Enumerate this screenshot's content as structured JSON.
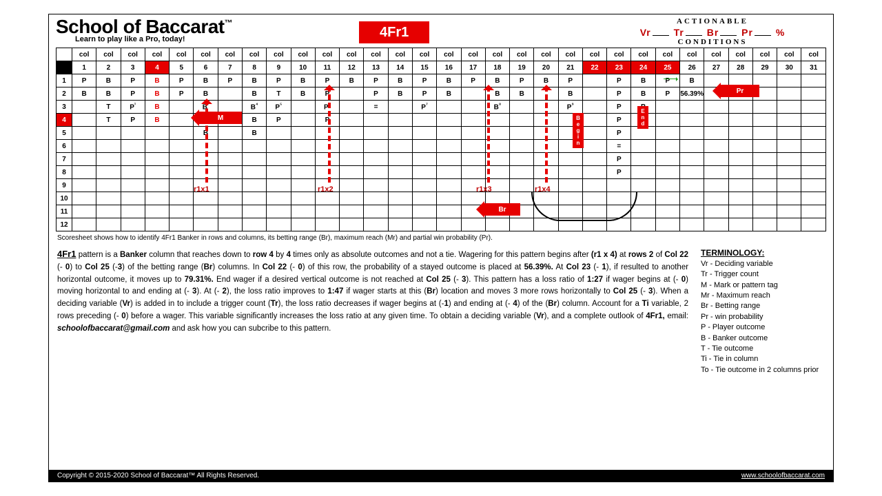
{
  "colors": {
    "red": "#e60000",
    "darkred": "#c00000",
    "black": "#000000"
  },
  "header": {
    "title": "School of Baccarat",
    "tm": "™",
    "tagline": "Learn to play like a Pro, today!",
    "badge": "4Fr1",
    "actionable_top": "ACTIONABLE",
    "actionable_bottom": "CONDITIONS",
    "formula_parts": [
      "Vr",
      "Tr",
      "Br",
      "Pr",
      "%"
    ]
  },
  "grid": {
    "col_label": "col",
    "num_cols": 31,
    "red_header_cols": [
      4,
      22,
      23,
      24,
      25
    ],
    "red_row_headers": [
      4
    ],
    "rows": [
      {
        "n": 1,
        "cells": [
          "P",
          "B",
          "P",
          "B",
          "P",
          "B",
          "P",
          "B",
          "P",
          "B",
          "P",
          "B",
          "P",
          "B",
          "P",
          "B",
          "P",
          "B",
          "P",
          "B",
          "P",
          "",
          "P",
          "B",
          "P",
          "B",
          "",
          "",
          "",
          "",
          ""
        ],
        "redcols": [
          4
        ]
      },
      {
        "n": 2,
        "cells": [
          "B",
          "B",
          "P",
          "B",
          "P",
          "B",
          "",
          "B",
          "T",
          "B",
          "P",
          "",
          "P",
          "B",
          "P",
          "B",
          "",
          "B",
          "B",
          "",
          "B",
          "",
          "P",
          "B",
          "P",
          "56.39%",
          "",
          "",
          "",
          "",
          ""
        ],
        "redcols": [
          4
        ]
      },
      {
        "n": 3,
        "cells": [
          "",
          "T",
          "P¹",
          "B",
          "",
          "B³",
          "",
          "B⁴",
          "P⁵",
          "",
          "P⁶",
          "",
          "=",
          "",
          "P⁷",
          "",
          "",
          "B⁸",
          "",
          "",
          "P⁹",
          "",
          "P",
          "B",
          "",
          "",
          "",
          "",
          "",
          "",
          ""
        ],
        "redcols": [
          4
        ]
      },
      {
        "n": 4,
        "cells": [
          "",
          "T",
          "P",
          "B",
          "",
          "",
          "",
          "B",
          "P",
          "",
          "P",
          "",
          "",
          "",
          "",
          "",
          "",
          "",
          "",
          "",
          "",
          "",
          "P",
          "",
          "",
          "",
          "",
          "",
          "",
          "",
          ""
        ],
        "redcols": [
          4
        ]
      },
      {
        "n": 5,
        "cells": [
          "",
          "",
          "",
          "",
          "",
          "B",
          "",
          "B",
          "",
          "",
          "",
          "",
          "",
          "",
          "",
          "",
          "",
          "",
          "",
          "",
          "",
          "",
          "P",
          "",
          "",
          "",
          "",
          "",
          "",
          "",
          ""
        ]
      },
      {
        "n": 6,
        "cells": [
          "",
          "",
          "",
          "",
          "",
          "",
          "",
          "",
          "",
          "",
          "",
          "",
          "",
          "",
          "",
          "",
          "",
          "",
          "",
          "",
          "",
          "",
          "=",
          "",
          "",
          "",
          "",
          "",
          "",
          "",
          ""
        ]
      },
      {
        "n": 7,
        "cells": [
          "",
          "",
          "",
          "",
          "",
          "",
          "",
          "",
          "",
          "",
          "",
          "",
          "",
          "",
          "",
          "",
          "",
          "",
          "",
          "",
          "",
          "",
          "P",
          "",
          "",
          "",
          "",
          "",
          "",
          "",
          ""
        ]
      },
      {
        "n": 8,
        "cells": [
          "",
          "",
          "",
          "",
          "",
          "",
          "",
          "",
          "",
          "",
          "",
          "",
          "",
          "",
          "",
          "",
          "",
          "",
          "",
          "",
          "",
          "",
          "P",
          "",
          "",
          "",
          "",
          "",
          "",
          "",
          ""
        ]
      },
      {
        "n": 9,
        "cells": [
          "",
          "",
          "",
          "",
          "",
          "",
          "",
          "",
          "",
          "",
          "",
          "",
          "",
          "",
          "",
          "",
          "",
          "",
          "",
          "",
          "",
          "",
          "",
          "",
          "",
          "",
          "",
          "",
          "",
          "",
          ""
        ]
      },
      {
        "n": 10,
        "cells": [
          "",
          "",
          "",
          "",
          "",
          "",
          "",
          "",
          "",
          "",
          "",
          "",
          "",
          "",
          "",
          "",
          "",
          "",
          "",
          "",
          "",
          "",
          "",
          "",
          "",
          "",
          "",
          "",
          "",
          "",
          ""
        ]
      },
      {
        "n": 11,
        "cells": [
          "",
          "",
          "",
          "",
          "",
          "",
          "",
          "",
          "",
          "",
          "",
          "",
          "",
          "",
          "",
          "",
          "",
          "",
          "",
          "",
          "",
          "",
          "",
          "",
          "",
          "",
          "",
          "",
          "",
          "",
          ""
        ]
      },
      {
        "n": 12,
        "cells": [
          "",
          "",
          "",
          "",
          "",
          "",
          "",
          "",
          "",
          "",
          "",
          "",
          "",
          "",
          "",
          "",
          "",
          "",
          "",
          "",
          "",
          "",
          "",
          "",
          "",
          "",
          "",
          "",
          "",
          "",
          ""
        ]
      }
    ],
    "annotations": {
      "m_label": "M",
      "begin_label": "Begin",
      "end_label": "End",
      "pr_label": "Pr",
      "br_label": "Br",
      "r_labels": [
        "r1x1",
        "r1x2",
        "r1x3",
        "r1x4"
      ],
      "pct": "56.39%"
    }
  },
  "caption": "Scoresheet shows how to identify 4Fr1 Banker in rows and columns, its betting range (Br), maximum reach (Mr) and partial win probability (Pr).",
  "body": "<span class='u'>4Fr1</span> pattern is a <b>Banker</b> column that reaches down to <b>row 4</b> by <b>4</b> times only as absolute outcomes and not a tie. Wagering for this pattern begins after <b>(r1 x 4)</b> at <b>rows 2</b> of <b>Col 22</b> (- <b>0</b>) to <b>Col 25</b> (-<b>3</b>) of the betting range (<b>Br</b>) columns. In <b>Col 22</b> (- <b>0</b>) of this row, the probability of a stayed outcome is placed at <b>56.39%.</b> At <b>Col 23</b> (- <b>1</b>), if resulted to another horizontal outcome, it moves up to <b>79.31%.</b> End wager if a desired vertical outcome is not reached at <b>Col 25</b> (- <b>3</b>). This pattern has a loss ratio of <b>1:27</b> if wager begins at (- <b>0</b>) moving horizontal to and ending at (- <b>3</b>). At (- <b>2</b>), the loss ratio improves to <b>1:47</b> if wager starts at this (<b>Br</b>) location and moves 3 more rows horizontally to <b>Col 25</b> (- <b>3</b>). When a deciding variable (<b>Vr</b>) is added in to include a trigger count (<b>Tr</b>), the loss ratio decreases if wager begins at (-<b>1</b>) and ending at (- <b>4</b>) of the (<b>Br</b>) column. Account for a <b>Ti</b> variable, 2 rows preceding (- <b>0</b>) before a wager. This variable significantly increases the loss ratio at any given time. To obtain a deciding variable (<b>Vr</b>), and a complete outlook of <b>4Fr1,</b> email: <b><i>schoolofbaccarat@gmail.com</i></b> and ask how you can subcribe to this pattern.",
  "terminology": {
    "header": "TERMINOLOGY:",
    "items": [
      "Vr - Deciding variable",
      "Tr - Trigger count",
      "M - Mark or pattern tag",
      "Mr - Maximum reach",
      "Br - Betting range",
      "Pr - win probability",
      "P - Player outcome",
      "B - Banker outcome",
      "T - Tie outcome",
      "Ti - Tie in column",
      "To - Tie outcome in 2 columns prior"
    ]
  },
  "footer": {
    "left": "Copyright © 2015-2020 School of Baccarat™ All Rights Reserved.",
    "right": "www.schoolofbaccarat.com"
  }
}
